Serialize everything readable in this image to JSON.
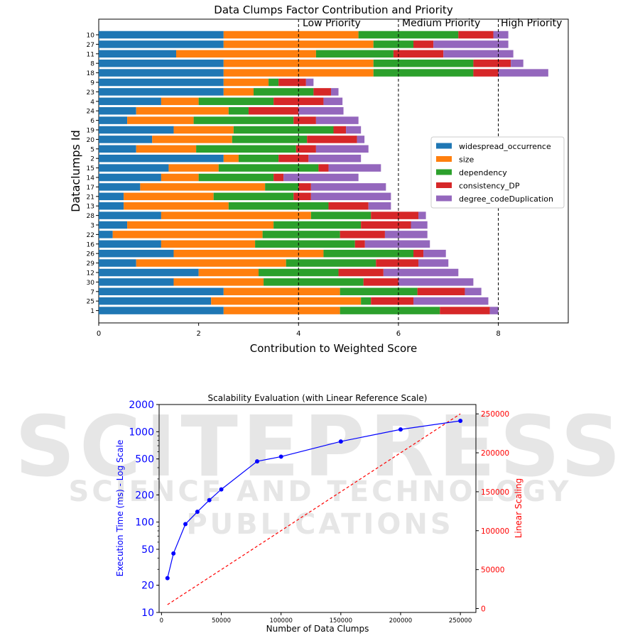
{
  "watermark": {
    "main": "SCITEPRESS",
    "sub": "SCIENCE AND TECHNOLOGY PUBLICATIONS"
  },
  "chart_data": [
    {
      "type": "bar",
      "orientation": "horizontal",
      "stacked": true,
      "title": "Data Clumps Factor Contribution and Priority",
      "xlabel": "Contribution to Weighted Score",
      "ylabel": "Dataclumps Id",
      "xlim": [
        0,
        9.4
      ],
      "xticks": [
        "0",
        "2",
        "4",
        "6",
        "8"
      ],
      "legend_position": "center-right",
      "priority_lines": [
        4,
        6,
        8
      ],
      "priority_labels": [
        "Low Priority",
        "Medium Priority",
        "High Priority"
      ],
      "categories": [
        "10",
        "27",
        "11",
        "8",
        "18",
        "9",
        "23",
        "4",
        "24",
        "6",
        "19",
        "20",
        "5",
        "2",
        "15",
        "14",
        "17",
        "21",
        "13",
        "28",
        "3",
        "22",
        "16",
        "26",
        "29",
        "12",
        "30",
        "7",
        "25",
        "1"
      ],
      "series": [
        {
          "name": "widespread_occurrence",
          "color": "#1f77b4",
          "values": [
            2.5,
            2.5,
            1.55,
            2.5,
            2.5,
            2.5,
            2.5,
            1.25,
            0.75,
            0.57,
            1.5,
            1.07,
            0.75,
            2.5,
            1.4,
            1.25,
            0.83,
            0.5,
            0.5,
            1.25,
            0.57,
            0.28,
            1.25,
            1.5,
            0.75,
            2.0,
            1.5,
            2.5,
            2.25,
            2.5
          ]
        },
        {
          "name": "size",
          "color": "#ff7f0e",
          "values": [
            2.7,
            3.0,
            2.8,
            3.0,
            3.0,
            0.9,
            0.6,
            0.75,
            1.85,
            1.33,
            1.2,
            1.6,
            1.2,
            0.3,
            1.0,
            0.75,
            2.5,
            1.8,
            2.1,
            3.0,
            2.93,
            3.0,
            1.88,
            3.0,
            3.0,
            1.2,
            1.8,
            2.33,
            3.0,
            2.33
          ]
        },
        {
          "name": "dependency",
          "color": "#2ca02c",
          "values": [
            2.0,
            0.8,
            1.55,
            2.0,
            2.0,
            0.2,
            1.2,
            1.5,
            0.4,
            2.0,
            2.0,
            1.5,
            2.0,
            0.8,
            2.0,
            1.5,
            0.67,
            1.6,
            2.0,
            1.2,
            1.75,
            1.55,
            2.0,
            1.8,
            1.8,
            1.6,
            2.0,
            1.55,
            0.2,
            2.0
          ]
        },
        {
          "name": "consistency_DP",
          "color": "#d62728",
          "values": [
            0.7,
            0.4,
            1.0,
            0.75,
            0.5,
            0.55,
            0.35,
            1.0,
            1.0,
            0.45,
            0.25,
            1.0,
            0.4,
            0.6,
            0.2,
            0.2,
            0.25,
            0.35,
            0.8,
            0.95,
            1.0,
            0.9,
            0.2,
            0.2,
            0.85,
            0.9,
            0.7,
            0.95,
            0.85,
            1.0
          ]
        },
        {
          "name": "degree_codeDuplication",
          "color": "#9467bd",
          "values": [
            0.3,
            1.5,
            1.4,
            0.25,
            1.0,
            0.15,
            0.15,
            0.38,
            0.9,
            0.85,
            0.3,
            0.15,
            1.05,
            1.05,
            1.05,
            1.5,
            1.5,
            1.6,
            0.45,
            0.15,
            0.33,
            0.85,
            1.3,
            0.45,
            0.6,
            1.5,
            1.5,
            0.33,
            1.5,
            0.17
          ]
        }
      ]
    },
    {
      "type": "line",
      "title": "Scalability Evaluation (with Linear Reference Scale)",
      "xlabel": "Number of Data Clumps",
      "ylabel_left": "Execution Time (ms) - Log Scale",
      "ylabel_right": "Linear Scaling",
      "y_scale_left": "log",
      "ylim_left": [
        10,
        2000
      ],
      "yticks_left": [
        "10",
        "20",
        "50",
        "100",
        "200",
        "500",
        "1000",
        "2000"
      ],
      "ylim_right": [
        -5000,
        262000
      ],
      "yticks_right": [
        "0",
        "50000",
        "100000",
        "150000",
        "200000",
        "250000"
      ],
      "xlim": [
        -2000,
        263000
      ],
      "xticks": [
        "0",
        "50000",
        "100000",
        "150000",
        "200000",
        "250000"
      ],
      "series": [
        {
          "name": "",
          "axis": "left",
          "color": "#0000ff",
          "style": "solid",
          "marker": "circle",
          "x": [
            5000,
            10000,
            20000,
            30000,
            40000,
            50000,
            80000,
            100000,
            150000,
            200000,
            250000
          ],
          "y": [
            24,
            45,
            95,
            130,
            175,
            230,
            470,
            530,
            780,
            1060,
            1320
          ]
        },
        {
          "name": "",
          "axis": "right",
          "color": "#ff0000",
          "style": "dashed",
          "marker": "none",
          "x": [
            5000,
            250000
          ],
          "y": [
            5000,
            250000
          ]
        }
      ]
    }
  ]
}
